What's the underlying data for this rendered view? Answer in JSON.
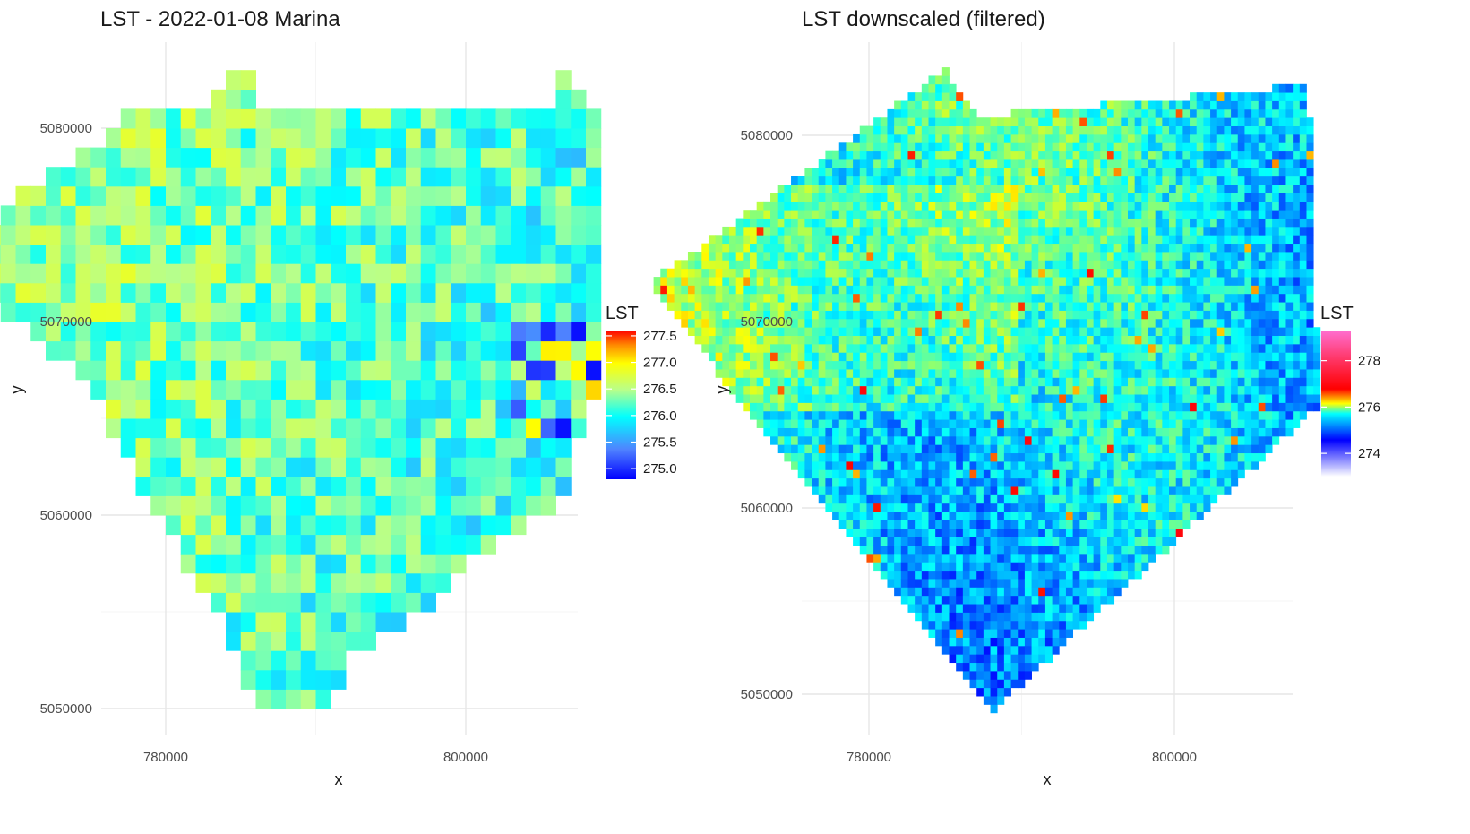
{
  "chart_data": [
    {
      "type": "heatmap",
      "title": "LST - 2022-01-08 Marina",
      "xlabel": "x",
      "ylabel": "y",
      "xlim": [
        765000,
        810000
      ],
      "ylim": [
        5050000,
        5082000
      ],
      "x_ticks": [
        780000,
        800000
      ],
      "x_tick_labels": [
        "780000",
        "800000"
      ],
      "y_ticks": [
        5050000,
        5060000,
        5070000,
        5080000
      ],
      "y_tick_labels": [
        "5050000",
        "5060000",
        "5070000",
        "5080000"
      ],
      "grid": true,
      "legend": {
        "title": "LST",
        "position": "right",
        "range": [
          274.8,
          277.6
        ],
        "ticks": [
          275.0,
          275.5,
          276.0,
          276.5,
          277.0,
          277.5
        ],
        "tick_labels": [
          "275.0",
          "275.5",
          "276.0",
          "276.5",
          "277.0",
          "277.5"
        ],
        "colors": [
          "#0000ff",
          "#4f83ff",
          "#00ffff",
          "#b8ff8a",
          "#ffff00",
          "#ff8c00",
          "#ff0000"
        ]
      },
      "raster": {
        "cell_size": 1000,
        "x_extent": [
          766000,
          809000
        ],
        "y_extent": [
          5050000,
          5083000
        ],
        "value_range": [
          274.8,
          277.6
        ],
        "mean": 275.9
      }
    },
    {
      "type": "heatmap",
      "title": "LST downscaled (filtered)",
      "xlabel": "x",
      "ylabel": "y",
      "xlim": [
        765000,
        811000
      ],
      "ylim": [
        5048000,
        5084000
      ],
      "x_ticks": [
        780000,
        800000
      ],
      "x_tick_labels": [
        "780000",
        "800000"
      ],
      "y_ticks": [
        5050000,
        5060000,
        5070000,
        5080000
      ],
      "y_tick_labels": [
        "5050000",
        "5060000",
        "5070000",
        "5080000"
      ],
      "grid": true,
      "legend": {
        "title": "LST",
        "position": "right",
        "range": [
          273.0,
          279.3
        ],
        "ticks": [
          274,
          276,
          278
        ],
        "tick_labels": [
          "274",
          "276",
          "278"
        ],
        "colors": [
          "#ffffff",
          "#0000ff",
          "#00ffff",
          "#ffff00",
          "#ff0000",
          "#ff69b4"
        ]
      },
      "raster": {
        "x_extent": [
          766000,
          809500
        ],
        "y_extent": [
          5049000,
          5083500
        ],
        "value_range": [
          273.0,
          279.3
        ],
        "mean": 275.8
      }
    }
  ]
}
